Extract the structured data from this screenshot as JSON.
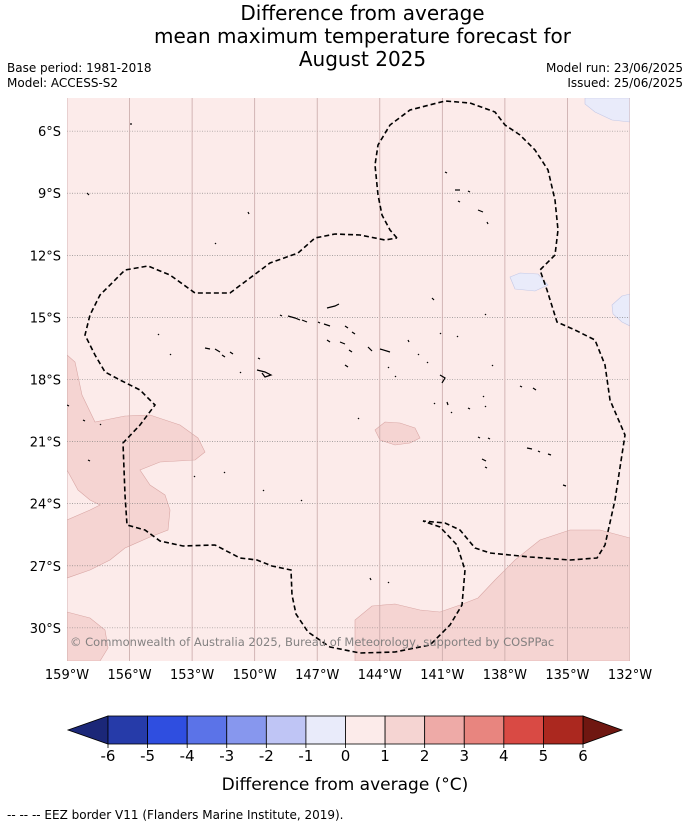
{
  "title": {
    "line1": "Difference from average",
    "line2": "mean maximum temperature forecast for",
    "line3": "August 2025"
  },
  "meta_left": {
    "base_period": "Base period: 1981-2018",
    "model": "Model: ACCESS-S2"
  },
  "meta_right": {
    "model_run": "Model run: 23/06/2025",
    "issued": "Issued: 25/06/2025"
  },
  "map": {
    "latitude_labels": [
      "6°S",
      "9°S",
      "12°S",
      "15°S",
      "18°S",
      "21°S",
      "24°S",
      "27°S",
      "30°S"
    ],
    "latitude_values": [
      -6,
      -9,
      -12,
      -15,
      -18,
      -21,
      -24,
      -27,
      -30
    ],
    "longitude_labels": [
      "159°W",
      "156°W",
      "153°W",
      "150°W",
      "147°W",
      "144°W",
      "141°W",
      "138°W",
      "135°W",
      "132°W"
    ],
    "longitude_values": [
      -159,
      -156,
      -153,
      -150,
      -147,
      -144,
      -141,
      -138,
      -135,
      -132
    ],
    "lat_range": [
      -31.6,
      -4.4
    ],
    "lon_range": [
      -159,
      -132
    ],
    "copyright": "© Commonwealth of Australia 2025, Bureau of Meteorology, supported by COSPPac",
    "colors": {
      "anomaly_0_to_1": "#fcebea",
      "anomaly_1_to_2": "#f5d4d2",
      "anomaly_-1_to_0": "#e9ebfa",
      "eez_border": "#000000"
    }
  },
  "colorbar": {
    "ticks": [
      "-6",
      "-5",
      "-4",
      "-3",
      "-2",
      "-1",
      "0",
      "1",
      "2",
      "3",
      "4",
      "5",
      "6"
    ],
    "colors": [
      "#263ba9",
      "#2f4ee0",
      "#5b73e8",
      "#8797ee",
      "#bfc5f5",
      "#e9ebfa",
      "#fcebea",
      "#f5d4d2",
      "#eeaaa7",
      "#e8857f",
      "#d94a44",
      "#ab281f"
    ],
    "under_color": "#1b2778",
    "over_color": "#6f1711",
    "label": "Difference from average (°C)"
  },
  "footer": "-- -- -- EEZ border V11 (Flanders Marine Institute, 2019)."
}
